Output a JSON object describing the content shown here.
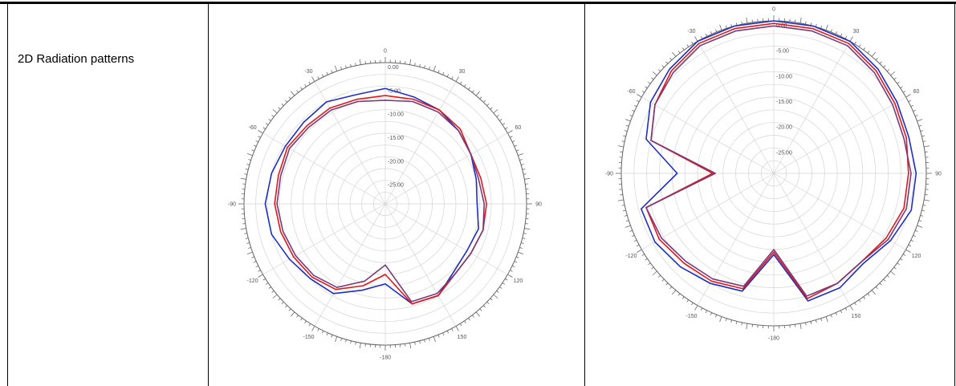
{
  "row_label": "2D Radiation patterns",
  "colors": {
    "blue": "#1f2fbf",
    "red": "#e01818",
    "purple": "#7a3a7a",
    "grid": "#d4d4d4",
    "axis": "#666666"
  },
  "chart_data": [
    {
      "type": "polar-line",
      "angle_ticks": [
        "0",
        "30",
        "60",
        "90",
        "120",
        "150",
        "-180",
        "-150",
        "-120",
        "-90",
        "-60",
        "-30"
      ],
      "angle_tick_values": [
        0,
        30,
        60,
        90,
        120,
        150,
        180,
        210,
        240,
        270,
        300,
        330
      ],
      "radial_labels": [
        "0.00",
        "-5.00",
        "-10.00",
        "-15.00",
        "-20.00",
        "-25.00"
      ],
      "rlim": [
        -30,
        0
      ],
      "series": [
        {
          "color": "#1f2fbf",
          "points": [
            [
              0,
              -5.5
            ],
            [
              15,
              -6.5
            ],
            [
              30,
              -7
            ],
            [
              45,
              -8
            ],
            [
              60,
              -9
            ],
            [
              75,
              -10
            ],
            [
              90,
              -10.5
            ],
            [
              105,
              -9.5
            ],
            [
              120,
              -10
            ],
            [
              135,
              -9.5
            ],
            [
              150,
              -7.5
            ],
            [
              165,
              -8
            ],
            [
              180,
              -13
            ],
            [
              195,
              -11
            ],
            [
              210,
              -8
            ],
            [
              225,
              -7.5
            ],
            [
              240,
              -6.5
            ],
            [
              255,
              -5
            ],
            [
              270,
              -4.5
            ],
            [
              285,
              -5
            ],
            [
              300,
              -5.5
            ],
            [
              315,
              -5.5
            ],
            [
              330,
              -5
            ],
            [
              345,
              -6
            ]
          ]
        },
        {
          "color": "#e01818",
          "points": [
            [
              0,
              -7
            ],
            [
              15,
              -7
            ],
            [
              30,
              -7
            ],
            [
              45,
              -7.5
            ],
            [
              60,
              -9
            ],
            [
              75,
              -9
            ],
            [
              90,
              -8.5
            ],
            [
              105,
              -8.5
            ],
            [
              120,
              -9
            ],
            [
              135,
              -9
            ],
            [
              150,
              -7.5
            ],
            [
              165,
              -8
            ],
            [
              180,
              -15
            ],
            [
              195,
              -12
            ],
            [
              210,
              -9
            ],
            [
              225,
              -8
            ],
            [
              240,
              -7.5
            ],
            [
              255,
              -7
            ],
            [
              270,
              -6.5
            ],
            [
              285,
              -6.5
            ],
            [
              300,
              -6
            ],
            [
              315,
              -6.5
            ],
            [
              330,
              -6.5
            ],
            [
              345,
              -7
            ]
          ]
        },
        {
          "color": "#7a3a7a",
          "points": [
            [
              0,
              -8
            ],
            [
              15,
              -7.5
            ],
            [
              30,
              -7.5
            ],
            [
              45,
              -8
            ],
            [
              60,
              -9
            ],
            [
              75,
              -9.5
            ],
            [
              90,
              -9
            ],
            [
              105,
              -8.5
            ],
            [
              120,
              -9
            ],
            [
              135,
              -9
            ],
            [
              150,
              -8
            ],
            [
              165,
              -8.5
            ],
            [
              180,
              -17
            ],
            [
              195,
              -13
            ],
            [
              210,
              -9.5
            ],
            [
              225,
              -8.5
            ],
            [
              240,
              -8
            ],
            [
              255,
              -7.5
            ],
            [
              270,
              -7
            ],
            [
              285,
              -7
            ],
            [
              300,
              -6.5
            ],
            [
              315,
              -7
            ],
            [
              330,
              -7
            ],
            [
              345,
              -7.5
            ]
          ]
        }
      ]
    },
    {
      "type": "polar-line",
      "angle_ticks": [
        "0",
        "30",
        "60",
        "90",
        "120",
        "150",
        "-180",
        "-150",
        "-120",
        "-90",
        "-60",
        "-30"
      ],
      "angle_tick_values": [
        0,
        30,
        60,
        90,
        120,
        150,
        180,
        210,
        240,
        270,
        300,
        330
      ],
      "radial_labels": [
        "0.00",
        "-5.00",
        "-10.00",
        "-15.00",
        "-20.00",
        "-25.00"
      ],
      "rlim": [
        -30,
        0
      ],
      "series": [
        {
          "color": "#1f2fbf",
          "points": [
            [
              0,
              0
            ],
            [
              15,
              0
            ],
            [
              30,
              0
            ],
            [
              45,
              -1
            ],
            [
              60,
              -2
            ],
            [
              75,
              -2.5
            ],
            [
              90,
              -2
            ],
            [
              105,
              -2
            ],
            [
              120,
              -3.5
            ],
            [
              135,
              -5
            ],
            [
              150,
              -4
            ],
            [
              165,
              -4
            ],
            [
              180,
              -14
            ],
            [
              195,
              -6
            ],
            [
              210,
              -5
            ],
            [
              225,
              -4
            ],
            [
              240,
              -3
            ],
            [
              255,
              -3
            ],
            [
              270,
              -11
            ],
            [
              285,
              -4
            ],
            [
              300,
              -2
            ],
            [
              315,
              -1
            ],
            [
              330,
              0
            ],
            [
              345,
              0
            ]
          ]
        },
        {
          "color": "#e01818",
          "points": [
            [
              0,
              -0.5
            ],
            [
              15,
              -0.5
            ],
            [
              30,
              -0.5
            ],
            [
              45,
              -1.5
            ],
            [
              60,
              -2.5
            ],
            [
              75,
              -3
            ],
            [
              90,
              -3.5
            ],
            [
              105,
              -3.5
            ],
            [
              120,
              -4.5
            ],
            [
              135,
              -5.5
            ],
            [
              150,
              -5
            ],
            [
              165,
              -4.5
            ],
            [
              180,
              -14.5
            ],
            [
              195,
              -6.5
            ],
            [
              210,
              -5.5
            ],
            [
              225,
              -5
            ],
            [
              240,
              -4
            ],
            [
              255,
              -4
            ],
            [
              270,
              -18
            ],
            [
              285,
              -5
            ],
            [
              300,
              -3
            ],
            [
              315,
              -1.5
            ],
            [
              330,
              -0.5
            ],
            [
              345,
              -0.5
            ]
          ]
        },
        {
          "color": "#7a3a7a",
          "points": [
            [
              0,
              -1
            ],
            [
              15,
              -1
            ],
            [
              30,
              -1
            ],
            [
              45,
              -2
            ],
            [
              60,
              -3
            ],
            [
              75,
              -3.5
            ],
            [
              90,
              -3
            ],
            [
              105,
              -3
            ],
            [
              120,
              -4
            ],
            [
              135,
              -5.5
            ],
            [
              150,
              -5
            ],
            [
              165,
              -5
            ],
            [
              180,
              -15
            ],
            [
              195,
              -7
            ],
            [
              210,
              -6
            ],
            [
              225,
              -5.5
            ],
            [
              240,
              -4.5
            ],
            [
              255,
              -4
            ],
            [
              270,
              -18.5
            ],
            [
              285,
              -5
            ],
            [
              300,
              -3
            ],
            [
              315,
              -2
            ],
            [
              330,
              -1
            ],
            [
              345,
              -1
            ]
          ]
        }
      ]
    }
  ]
}
